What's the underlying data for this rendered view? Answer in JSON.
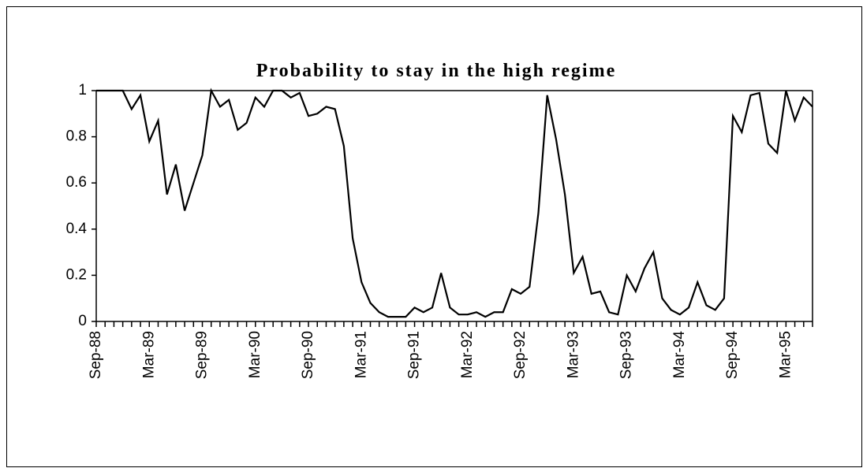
{
  "chart_data": {
    "type": "line",
    "title": "Probability to stay in the high regime",
    "categories": [
      "Sep-88",
      null,
      null,
      null,
      null,
      null,
      "Mar-89",
      null,
      null,
      null,
      null,
      null,
      "Sep-89",
      null,
      null,
      null,
      null,
      null,
      "Mar-90",
      null,
      null,
      null,
      null,
      null,
      "Sep-90",
      null,
      null,
      null,
      null,
      null,
      "Mar-91",
      null,
      null,
      null,
      null,
      null,
      "Sep-91",
      null,
      null,
      null,
      null,
      null,
      "Mar-92",
      null,
      null,
      null,
      null,
      null,
      "Sep-92",
      null,
      null,
      null,
      null,
      null,
      "Mar-93",
      null,
      null,
      null,
      null,
      null,
      "Sep-93",
      null,
      null,
      null,
      null,
      null,
      "Mar-94",
      null,
      null,
      null,
      null,
      null,
      "Sep-94",
      null,
      null,
      null,
      null,
      null,
      "Mar-95",
      null,
      null,
      null
    ],
    "series": [
      {
        "name": "Probability",
        "color": "#000000",
        "values": [
          1.0,
          1.0,
          1.0,
          1.0,
          0.92,
          0.98,
          0.78,
          0.87,
          0.55,
          0.68,
          0.48,
          0.6,
          0.72,
          1.0,
          0.93,
          0.96,
          0.83,
          0.86,
          0.97,
          0.93,
          1.0,
          1.0,
          0.97,
          0.99,
          0.89,
          0.9,
          0.93,
          0.92,
          0.76,
          0.36,
          0.17,
          0.08,
          0.04,
          0.02,
          0.02,
          0.02,
          0.06,
          0.04,
          0.06,
          0.21,
          0.06,
          0.03,
          0.03,
          0.04,
          0.02,
          0.04,
          0.04,
          0.14,
          0.12,
          0.15,
          0.47,
          0.98,
          0.79,
          0.55,
          0.21,
          0.28,
          0.12,
          0.13,
          0.04,
          0.03,
          0.2,
          0.13,
          0.23,
          0.3,
          0.1,
          0.05,
          0.03,
          0.06,
          0.17,
          0.07,
          0.05,
          0.1,
          0.89,
          0.82,
          0.98,
          0.99,
          0.77,
          0.73,
          1.0,
          0.87,
          0.97,
          0.93
        ]
      }
    ],
    "ylim": [
      0,
      1
    ],
    "yticks": [
      0,
      0.2,
      0.4,
      0.6,
      0.8,
      1
    ],
    "grid": false
  }
}
